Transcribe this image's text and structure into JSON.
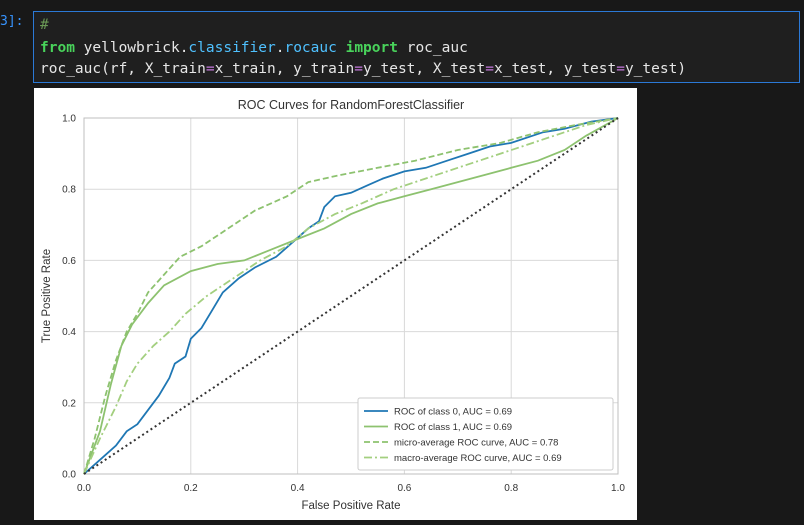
{
  "cell": {
    "prompt": "3]:",
    "lines": [
      [
        {
          "t": "#",
          "c": "comment"
        }
      ],
      [
        {
          "t": "from",
          "c": "keyword"
        },
        {
          "t": " ",
          "c": "plain"
        },
        {
          "t": "yellowbrick",
          "c": "plain"
        },
        {
          "t": ".",
          "c": "dot"
        },
        {
          "t": "classifier",
          "c": "module"
        },
        {
          "t": ".",
          "c": "dot"
        },
        {
          "t": "rocauc",
          "c": "module"
        },
        {
          "t": " ",
          "c": "plain"
        },
        {
          "t": "import",
          "c": "keyword"
        },
        {
          "t": " roc_auc",
          "c": "plain"
        }
      ],
      [
        {
          "t": "roc_auc(rf, X_train",
          "c": "plain"
        },
        {
          "t": "=",
          "c": "op"
        },
        {
          "t": "x_train, y_train",
          "c": "plain"
        },
        {
          "t": "=",
          "c": "op"
        },
        {
          "t": "y_test, X_test",
          "c": "plain"
        },
        {
          "t": "=",
          "c": "op"
        },
        {
          "t": "x_test, y_test",
          "c": "plain"
        },
        {
          "t": "=",
          "c": "op"
        },
        {
          "t": "y_test)",
          "c": "plain"
        }
      ]
    ]
  },
  "chart_data": {
    "type": "line",
    "title": "ROC Curves for RandomForestClassifier",
    "xlabel": "False Positive Rate",
    "ylabel": "True Positive Rate",
    "xlim": [
      0,
      1
    ],
    "ylim": [
      0,
      1
    ],
    "xticks": [
      "0.0",
      "0.2",
      "0.4",
      "0.6",
      "0.8",
      "1.0"
    ],
    "yticks": [
      "0.0",
      "0.2",
      "0.4",
      "0.6",
      "0.8",
      "1.0"
    ],
    "grid": true,
    "legend_position": "lower-right",
    "series": [
      {
        "name": "ROC of class 0, AUC = 0.69",
        "color": "#1f77b4",
        "style": "solid",
        "points": [
          [
            0,
            0
          ],
          [
            0.03,
            0.04
          ],
          [
            0.06,
            0.08
          ],
          [
            0.08,
            0.12
          ],
          [
            0.1,
            0.14
          ],
          [
            0.12,
            0.18
          ],
          [
            0.14,
            0.22
          ],
          [
            0.16,
            0.27
          ],
          [
            0.17,
            0.31
          ],
          [
            0.19,
            0.33
          ],
          [
            0.2,
            0.38
          ],
          [
            0.22,
            0.41
          ],
          [
            0.24,
            0.46
          ],
          [
            0.26,
            0.51
          ],
          [
            0.29,
            0.55
          ],
          [
            0.32,
            0.58
          ],
          [
            0.36,
            0.61
          ],
          [
            0.39,
            0.65
          ],
          [
            0.42,
            0.69
          ],
          [
            0.44,
            0.71
          ],
          [
            0.45,
            0.75
          ],
          [
            0.47,
            0.78
          ],
          [
            0.5,
            0.79
          ],
          [
            0.53,
            0.81
          ],
          [
            0.56,
            0.83
          ],
          [
            0.6,
            0.85
          ],
          [
            0.64,
            0.86
          ],
          [
            0.68,
            0.88
          ],
          [
            0.72,
            0.9
          ],
          [
            0.76,
            0.92
          ],
          [
            0.8,
            0.93
          ],
          [
            0.86,
            0.96
          ],
          [
            0.9,
            0.97
          ],
          [
            0.95,
            0.99
          ],
          [
            1,
            1
          ]
        ]
      },
      {
        "name": "ROC of class 1, AUC = 0.69",
        "color": "#8dc26f",
        "style": "solid",
        "points": [
          [
            0,
            0
          ],
          [
            0.03,
            0.12
          ],
          [
            0.05,
            0.25
          ],
          [
            0.07,
            0.36
          ],
          [
            0.09,
            0.42
          ],
          [
            0.12,
            0.48
          ],
          [
            0.15,
            0.53
          ],
          [
            0.2,
            0.57
          ],
          [
            0.25,
            0.59
          ],
          [
            0.3,
            0.6
          ],
          [
            0.35,
            0.63
          ],
          [
            0.4,
            0.66
          ],
          [
            0.45,
            0.69
          ],
          [
            0.5,
            0.73
          ],
          [
            0.55,
            0.76
          ],
          [
            0.6,
            0.78
          ],
          [
            0.65,
            0.8
          ],
          [
            0.7,
            0.82
          ],
          [
            0.75,
            0.84
          ],
          [
            0.8,
            0.86
          ],
          [
            0.85,
            0.88
          ],
          [
            0.9,
            0.91
          ],
          [
            0.94,
            0.95
          ],
          [
            1,
            1
          ]
        ]
      },
      {
        "name": "micro-average ROC curve, AUC = 0.78",
        "color": "#8dc26f",
        "style": "dashed",
        "points": [
          [
            0,
            0
          ],
          [
            0.02,
            0.1
          ],
          [
            0.04,
            0.22
          ],
          [
            0.06,
            0.32
          ],
          [
            0.08,
            0.4
          ],
          [
            0.1,
            0.45
          ],
          [
            0.12,
            0.51
          ],
          [
            0.15,
            0.56
          ],
          [
            0.18,
            0.61
          ],
          [
            0.22,
            0.64
          ],
          [
            0.27,
            0.69
          ],
          [
            0.32,
            0.74
          ],
          [
            0.38,
            0.78
          ],
          [
            0.42,
            0.82
          ],
          [
            0.48,
            0.84
          ],
          [
            0.55,
            0.86
          ],
          [
            0.62,
            0.88
          ],
          [
            0.7,
            0.91
          ],
          [
            0.78,
            0.93
          ],
          [
            0.85,
            0.96
          ],
          [
            0.92,
            0.98
          ],
          [
            1,
            1
          ]
        ]
      },
      {
        "name": "macro-average ROC curve, AUC = 0.69",
        "color": "#a3cf7f",
        "style": "dashdot",
        "points": [
          [
            0,
            0
          ],
          [
            0.03,
            0.1
          ],
          [
            0.06,
            0.19
          ],
          [
            0.08,
            0.26
          ],
          [
            0.1,
            0.31
          ],
          [
            0.13,
            0.36
          ],
          [
            0.16,
            0.4
          ],
          [
            0.19,
            0.45
          ],
          [
            0.23,
            0.5
          ],
          [
            0.28,
            0.55
          ],
          [
            0.33,
            0.6
          ],
          [
            0.38,
            0.64
          ],
          [
            0.42,
            0.69
          ],
          [
            0.47,
            0.73
          ],
          [
            0.52,
            0.76
          ],
          [
            0.58,
            0.8
          ],
          [
            0.64,
            0.83
          ],
          [
            0.7,
            0.86
          ],
          [
            0.76,
            0.89
          ],
          [
            0.82,
            0.92
          ],
          [
            0.88,
            0.95
          ],
          [
            0.94,
            0.98
          ],
          [
            1,
            1
          ]
        ]
      },
      {
        "name": "",
        "color": "#333333",
        "style": "dotted",
        "points": [
          [
            0,
            0
          ],
          [
            1,
            1
          ]
        ]
      }
    ]
  }
}
